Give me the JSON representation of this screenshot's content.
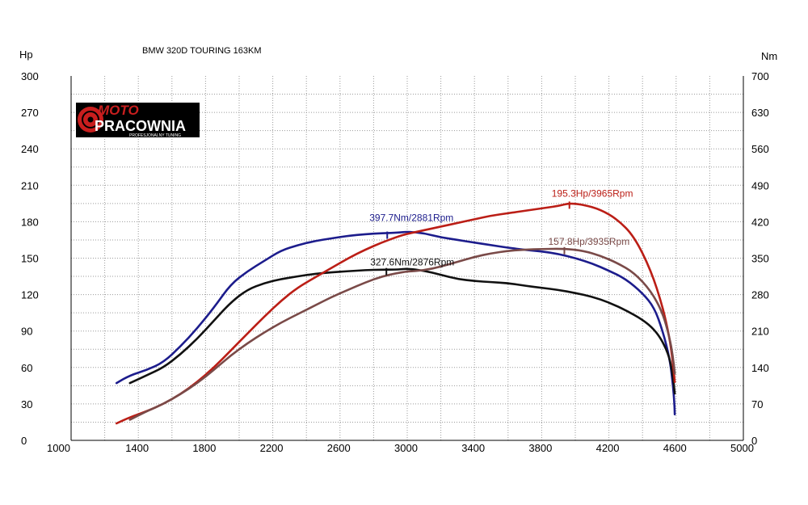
{
  "chart_data": {
    "type": "line",
    "title": "BMW 320D TOURING 163KM",
    "left_unit": "Hp",
    "right_unit": "Nm",
    "x_ticks": [
      1000,
      1400,
      1800,
      2200,
      2600,
      3000,
      3400,
      3800,
      4200,
      4600,
      5000
    ],
    "x_range": [
      1000,
      5000
    ],
    "y_left_range": [
      0,
      300
    ],
    "y_left_ticks": [
      0,
      30,
      60,
      90,
      120,
      150,
      180,
      210,
      240,
      270,
      300
    ],
    "y_right_range": [
      0,
      700
    ],
    "y_right_ticks": [
      0,
      70,
      140,
      210,
      280,
      350,
      420,
      490,
      560,
      630,
      700
    ],
    "grid": true,
    "logo": {
      "line1": "MOTO",
      "line2": "PRACOWNIA",
      "tagline": "PROFESJONALNY TUNING"
    },
    "colors": {
      "torque_tuned": "#1c1c8c",
      "torque_stock": "#111111",
      "power_tuned": "#bb1e16",
      "power_stock": "#7a4a48"
    },
    "series": [
      {
        "id": "torque_tuned",
        "axis": "right",
        "points": [
          [
            1270,
            110
          ],
          [
            1350,
            125
          ],
          [
            1450,
            135
          ],
          [
            1550,
            150
          ],
          [
            1650,
            180
          ],
          [
            1750,
            215
          ],
          [
            1850,
            255
          ],
          [
            1950,
            300
          ],
          [
            2050,
            325
          ],
          [
            2150,
            345
          ],
          [
            2250,
            365
          ],
          [
            2350,
            375
          ],
          [
            2450,
            383
          ],
          [
            2550,
            388
          ],
          [
            2650,
            393
          ],
          [
            2750,
            396
          ],
          [
            2850,
            398
          ],
          [
            2950,
            399
          ],
          [
            3000,
            401
          ],
          [
            3100,
            398
          ],
          [
            3200,
            390
          ],
          [
            3300,
            385
          ],
          [
            3400,
            380
          ],
          [
            3500,
            375
          ],
          [
            3600,
            370
          ],
          [
            3700,
            366
          ],
          [
            3800,
            363
          ],
          [
            3900,
            358
          ],
          [
            4000,
            350
          ],
          [
            4100,
            340
          ],
          [
            4200,
            326
          ],
          [
            4300,
            310
          ],
          [
            4400,
            283
          ],
          [
            4470,
            255
          ],
          [
            4520,
            210
          ],
          [
            4560,
            160
          ],
          [
            4580,
            110
          ],
          [
            4590,
            70
          ],
          [
            4592,
            50
          ]
        ],
        "peak_label": "397.7Nm/2881Rpm",
        "peak_x": 2881,
        "peak_y": 398
      },
      {
        "id": "torque_stock",
        "axis": "right",
        "points": [
          [
            1350,
            110
          ],
          [
            1450,
            125
          ],
          [
            1550,
            140
          ],
          [
            1650,
            165
          ],
          [
            1750,
            195
          ],
          [
            1850,
            230
          ],
          [
            1950,
            265
          ],
          [
            2050,
            290
          ],
          [
            2150,
            302
          ],
          [
            2250,
            310
          ],
          [
            2350,
            315
          ],
          [
            2450,
            320
          ],
          [
            2550,
            323
          ],
          [
            2650,
            325
          ],
          [
            2750,
            327
          ],
          [
            2850,
            328
          ],
          [
            2950,
            328
          ],
          [
            3000,
            330
          ],
          [
            3100,
            326
          ],
          [
            3200,
            318
          ],
          [
            3300,
            310
          ],
          [
            3400,
            306
          ],
          [
            3500,
            304
          ],
          [
            3600,
            302
          ],
          [
            3700,
            297
          ],
          [
            3800,
            293
          ],
          [
            3900,
            289
          ],
          [
            4000,
            283
          ],
          [
            4100,
            276
          ],
          [
            4200,
            265
          ],
          [
            4300,
            250
          ],
          [
            4400,
            232
          ],
          [
            4470,
            213
          ],
          [
            4520,
            190
          ],
          [
            4560,
            160
          ],
          [
            4580,
            125
          ],
          [
            4592,
            90
          ]
        ],
        "peak_label": "327.6Nm/2876Rpm",
        "peak_x": 2876,
        "peak_y": 328
      },
      {
        "id": "power_tuned",
        "axis": "left",
        "points": [
          [
            1270,
            14
          ],
          [
            1350,
            19
          ],
          [
            1450,
            24
          ],
          [
            1550,
            30
          ],
          [
            1650,
            38
          ],
          [
            1750,
            48
          ],
          [
            1850,
            60
          ],
          [
            1950,
            74
          ],
          [
            2050,
            88
          ],
          [
            2150,
            102
          ],
          [
            2250,
            115
          ],
          [
            2350,
            126
          ],
          [
            2450,
            134
          ],
          [
            2550,
            142
          ],
          [
            2650,
            150
          ],
          [
            2750,
            157
          ],
          [
            2850,
            163
          ],
          [
            2950,
            168
          ],
          [
            3000,
            170
          ],
          [
            3100,
            173
          ],
          [
            3200,
            176
          ],
          [
            3300,
            179
          ],
          [
            3400,
            182
          ],
          [
            3500,
            185
          ],
          [
            3600,
            187
          ],
          [
            3700,
            189
          ],
          [
            3800,
            191
          ],
          [
            3900,
            193
          ],
          [
            3965,
            195.3
          ],
          [
            4050,
            194
          ],
          [
            4150,
            190
          ],
          [
            4250,
            182
          ],
          [
            4350,
            168
          ],
          [
            4450,
            140
          ],
          [
            4520,
            110
          ],
          [
            4560,
            85
          ],
          [
            4580,
            65
          ],
          [
            4592,
            48
          ]
        ],
        "peak_label": "195.3Hp/3965Rpm",
        "peak_x": 3965,
        "peak_y": 195.3
      },
      {
        "id": "power_stock",
        "axis": "left",
        "points": [
          [
            1350,
            17
          ],
          [
            1450,
            24
          ],
          [
            1550,
            30
          ],
          [
            1650,
            38
          ],
          [
            1750,
            47
          ],
          [
            1850,
            58
          ],
          [
            1950,
            70
          ],
          [
            2050,
            80
          ],
          [
            2150,
            89
          ],
          [
            2250,
            97
          ],
          [
            2350,
            104
          ],
          [
            2450,
            111
          ],
          [
            2550,
            118
          ],
          [
            2650,
            124
          ],
          [
            2750,
            130
          ],
          [
            2850,
            135
          ],
          [
            2950,
            138
          ],
          [
            3000,
            139
          ],
          [
            3100,
            140
          ],
          [
            3200,
            143
          ],
          [
            3300,
            147
          ],
          [
            3400,
            151
          ],
          [
            3500,
            154
          ],
          [
            3600,
            156
          ],
          [
            3700,
            157
          ],
          [
            3800,
            157.5
          ],
          [
            3935,
            157.8
          ],
          [
            4050,
            156
          ],
          [
            4150,
            152
          ],
          [
            4250,
            146
          ],
          [
            4350,
            138
          ],
          [
            4450,
            123
          ],
          [
            4520,
            105
          ],
          [
            4560,
            85
          ],
          [
            4580,
            70
          ],
          [
            4592,
            55
          ]
        ],
        "peak_label": "157.8Hp/3935Rpm",
        "peak_x": 3935,
        "peak_y": 157.8
      }
    ]
  }
}
